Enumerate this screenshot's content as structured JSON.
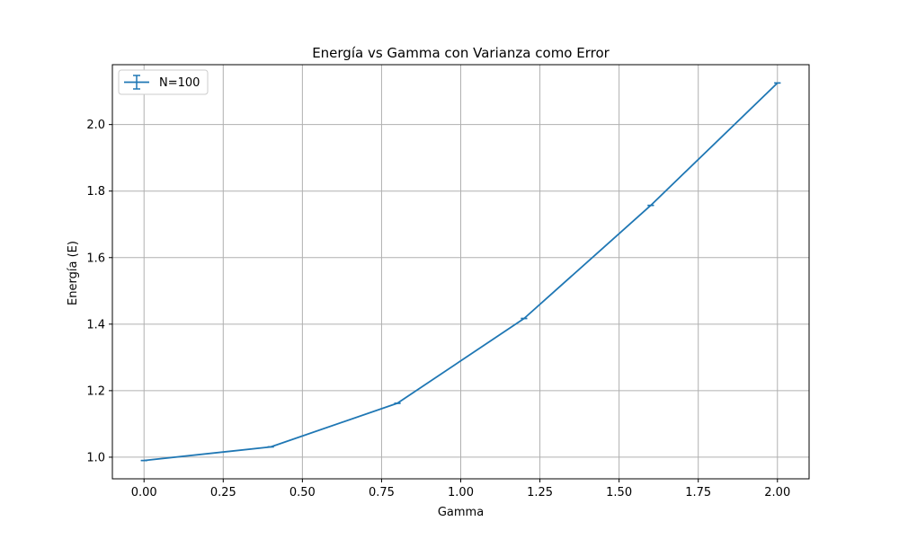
{
  "chart_data": {
    "type": "line",
    "title": "Energía vs Gamma con Varianza como Error",
    "xlabel": "Gamma",
    "ylabel": "Energía (E)",
    "xlim": [
      -0.1,
      2.1
    ],
    "ylim": [
      0.935,
      2.18
    ],
    "xticks": [
      0.0,
      0.25,
      0.5,
      0.75,
      1.0,
      1.25,
      1.5,
      1.75,
      2.0
    ],
    "xtick_labels": [
      "0.00",
      "0.25",
      "0.50",
      "0.75",
      "1.00",
      "1.25",
      "1.50",
      "1.75",
      "2.00"
    ],
    "yticks": [
      1.0,
      1.2,
      1.4,
      1.6,
      1.8,
      2.0
    ],
    "ytick_labels": [
      "1.0",
      "1.2",
      "1.4",
      "1.6",
      "1.8",
      "2.0"
    ],
    "grid": true,
    "legend_position": "top-left",
    "series": [
      {
        "name": "N=100",
        "color": "#1f77b4",
        "x": [
          0.0,
          0.4,
          0.8,
          1.2,
          1.6,
          2.0
        ],
        "y": [
          0.99,
          1.031,
          1.162,
          1.417,
          1.757,
          2.125
        ],
        "yerr": [
          0.0,
          0.0,
          0.0,
          0.0,
          0.0,
          0.0
        ],
        "cap_halfwidth": 0.01
      }
    ]
  }
}
